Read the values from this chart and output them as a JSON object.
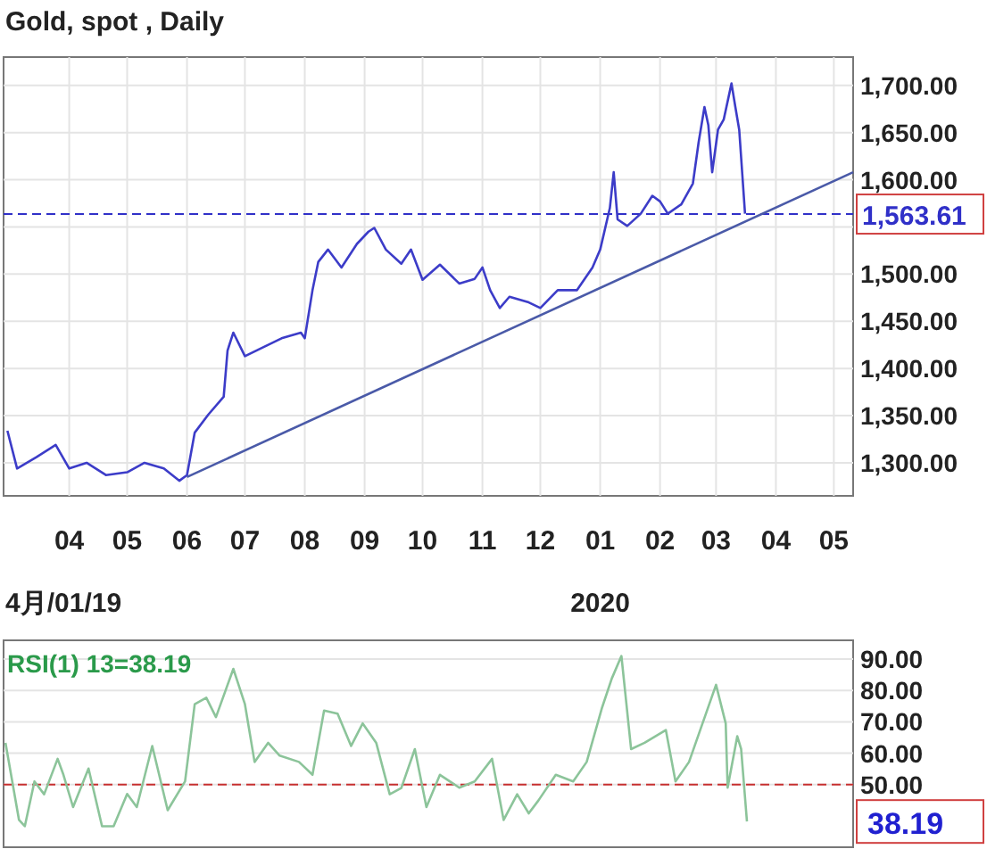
{
  "chart_data": [
    {
      "type": "line",
      "title": "Gold, spot , Daily",
      "grid": true,
      "marker": "none",
      "line_style": "solid",
      "xlim": [
        "2019-02-26",
        "2020-05-11"
      ],
      "ylim": [
        1265,
        1730
      ],
      "xticks": [
        {
          "value": "2019-04-01",
          "label": "04"
        },
        {
          "value": "2019-05-01",
          "label": "05"
        },
        {
          "value": "2019-06-01",
          "label": "06"
        },
        {
          "value": "2019-07-01",
          "label": "07"
        },
        {
          "value": "2019-08-01",
          "label": "08"
        },
        {
          "value": "2019-09-01",
          "label": "09"
        },
        {
          "value": "2019-10-01",
          "label": "10"
        },
        {
          "value": "2019-11-01",
          "label": "11"
        },
        {
          "value": "2019-12-01",
          "label": "12"
        },
        {
          "value": "2020-01-01",
          "label": "01"
        },
        {
          "value": "2020-02-01",
          "label": "02"
        },
        {
          "value": "2020-03-01",
          "label": "03"
        },
        {
          "value": "2020-04-01",
          "label": "04"
        },
        {
          "value": "2020-05-01",
          "label": "05"
        }
      ],
      "yticks": [
        {
          "value": 1300,
          "label": "1,300.00"
        },
        {
          "value": 1350,
          "label": "1,350.00"
        },
        {
          "value": 1400,
          "label": "1,400.00"
        },
        {
          "value": 1450,
          "label": "1,450.00"
        },
        {
          "value": 1500,
          "label": "1,500.00"
        },
        {
          "value": 1550,
          "label": null
        },
        {
          "value": 1600,
          "label": "1,600.00"
        },
        {
          "value": 1650,
          "label": "1,650.00"
        },
        {
          "value": 1700,
          "label": "1,700.00"
        }
      ],
      "ref_lines": [
        {
          "axis": "y",
          "value": 1563.61,
          "label": "1,563.61",
          "color": "#3030c8",
          "line_style": "dashed"
        }
      ],
      "annotations": [
        "4月/01/19",
        "2020"
      ],
      "series": [
        {
          "color": "#3c3cc8",
          "x": [
            "2019-02-28",
            "2019-03-05",
            "2019-03-15",
            "2019-03-25",
            "2019-04-01",
            "2019-04-10",
            "2019-04-20",
            "2019-05-01",
            "2019-05-10",
            "2019-05-20",
            "2019-05-28",
            "2019-06-01",
            "2019-06-05",
            "2019-06-12",
            "2019-06-20",
            "2019-06-22",
            "2019-06-25",
            "2019-07-01",
            "2019-07-10",
            "2019-07-20",
            "2019-07-30",
            "2019-08-01",
            "2019-08-05",
            "2019-08-08",
            "2019-08-13",
            "2019-08-20",
            "2019-08-28",
            "2019-09-03",
            "2019-09-06",
            "2019-09-12",
            "2019-09-20",
            "2019-09-25",
            "2019-10-01",
            "2019-10-10",
            "2019-10-20",
            "2019-10-28",
            "2019-11-01",
            "2019-11-05",
            "2019-11-10",
            "2019-11-15",
            "2019-11-25",
            "2019-12-01",
            "2019-12-10",
            "2019-12-20",
            "2019-12-28",
            "2020-01-01",
            "2020-01-06",
            "2020-01-08",
            "2020-01-10",
            "2020-01-15",
            "2020-01-22",
            "2020-01-28",
            "2020-02-01",
            "2020-02-05",
            "2020-02-12",
            "2020-02-18",
            "2020-02-21",
            "2020-02-24",
            "2020-02-26",
            "2020-02-28",
            "2020-03-02",
            "2020-03-05",
            "2020-03-09",
            "2020-03-11",
            "2020-03-13",
            "2020-03-16"
          ],
          "values": [
            1334,
            1294,
            1306,
            1319,
            1294,
            1300,
            1287,
            1290,
            1300,
            1294,
            1281,
            1287,
            1332,
            1351,
            1370,
            1419,
            1438,
            1413,
            1422,
            1432,
            1438,
            1432,
            1483,
            1513,
            1526,
            1507,
            1532,
            1545,
            1549,
            1526,
            1511,
            1526,
            1494,
            1510,
            1490,
            1495,
            1507,
            1483,
            1464,
            1476,
            1470,
            1464,
            1483,
            1483,
            1507,
            1526,
            1570,
            1608,
            1558,
            1551,
            1564,
            1583,
            1577,
            1564,
            1574,
            1596,
            1640,
            1677,
            1658,
            1608,
            1653,
            1664,
            1702,
            1677,
            1653,
            1564
          ]
        },
        {
          "color": "#4a5aa8",
          "x": [
            "2019-06-01",
            "2020-05-11"
          ],
          "values": [
            1285,
            1608
          ]
        }
      ]
    },
    {
      "type": "line",
      "title": "RSI(1) 13=38.19",
      "grid": true,
      "marker": "none",
      "line_style": "solid",
      "tick_labels": "y",
      "xlim": [
        "2019-02-26",
        "2020-05-11"
      ],
      "ylim": [
        30,
        96
      ],
      "yticks": [
        {
          "value": 50,
          "label": "50.00"
        },
        {
          "value": 60,
          "label": "60.00"
        },
        {
          "value": 70,
          "label": "70.00"
        },
        {
          "value": 80,
          "label": "80.00"
        },
        {
          "value": 90,
          "label": "90.00"
        }
      ],
      "ref_lines": [
        {
          "axis": "y",
          "value": 50,
          "color": "#c83030",
          "line_style": "dashed"
        }
      ],
      "annotations": [
        "38.19"
      ],
      "series": [
        {
          "color": "#8cc49a",
          "x": [
            "2019-02-27",
            "2019-03-06",
            "2019-03-09",
            "2019-03-14",
            "2019-03-19",
            "2019-03-26",
            "2019-03-29",
            "2019-04-03",
            "2019-04-11",
            "2019-04-18",
            "2019-04-24",
            "2019-05-01",
            "2019-05-06",
            "2019-05-14",
            "2019-05-22",
            "2019-05-31",
            "2019-06-05",
            "2019-06-11",
            "2019-06-16",
            "2019-06-25",
            "2019-07-01",
            "2019-07-06",
            "2019-07-13",
            "2019-07-19",
            "2019-07-29",
            "2019-08-05",
            "2019-08-11",
            "2019-08-18",
            "2019-08-25",
            "2019-08-31",
            "2019-09-07",
            "2019-09-14",
            "2019-09-20",
            "2019-09-27",
            "2019-10-03",
            "2019-10-10",
            "2019-10-20",
            "2019-10-28",
            "2019-11-06",
            "2019-11-12",
            "2019-11-19",
            "2019-11-25",
            "2019-11-30",
            "2019-12-09",
            "2019-12-18",
            "2019-12-25",
            "2020-01-02",
            "2020-01-07",
            "2020-01-12",
            "2020-01-17",
            "2020-01-24",
            "2020-02-04",
            "2020-02-09",
            "2020-02-16",
            "2020-02-23",
            "2020-03-01",
            "2020-03-06",
            "2020-03-07",
            "2020-03-12",
            "2020-03-14",
            "2020-03-17"
          ],
          "values": [
            63.3,
            38.7,
            36.7,
            51.0,
            46.9,
            58.2,
            53.1,
            42.8,
            55.1,
            36.7,
            36.7,
            47.0,
            42.8,
            62.3,
            41.8,
            51.0,
            75.6,
            77.7,
            71.5,
            86.9,
            75.6,
            57.2,
            63.3,
            59.2,
            57.2,
            53.1,
            73.6,
            72.6,
            62.3,
            69.5,
            63.3,
            46.9,
            48.9,
            61.3,
            42.8,
            53.1,
            49.0,
            51.0,
            58.2,
            38.7,
            46.9,
            40.8,
            44.9,
            53.1,
            51.0,
            57.2,
            74.6,
            83.8,
            91.0,
            61.3,
            63.3,
            67.4,
            51.0,
            57.2,
            69.5,
            81.8,
            69.5,
            49.0,
            65.4,
            61.3,
            38.2
          ]
        }
      ]
    }
  ]
}
